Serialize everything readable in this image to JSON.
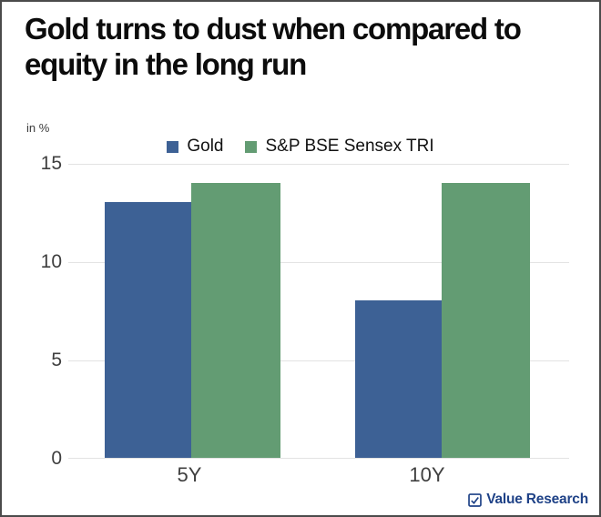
{
  "header": {
    "title_line1": "Gold turns to dust when compared to",
    "title_line2": "equity in the long run"
  },
  "chart_data": {
    "type": "bar",
    "title": "Gold turns to dust when compared to equity in the long run",
    "unit_label": "in %",
    "categories": [
      "5Y",
      "10Y"
    ],
    "series": [
      {
        "name": "Gold",
        "color": "#3d6195",
        "values": [
          13,
          8
        ]
      },
      {
        "name": "S&P BSE Sensex TRI",
        "color": "#639c73",
        "values": [
          14,
          14
        ]
      }
    ],
    "yticks": [
      "15",
      "10",
      "5",
      "0"
    ],
    "ylim": [
      0,
      15
    ],
    "grid": true,
    "legend_position": "top-center",
    "gridline_color": "#e3e3e3"
  },
  "footer": {
    "brand": "Value Research",
    "brand_color": "#1f4287"
  }
}
